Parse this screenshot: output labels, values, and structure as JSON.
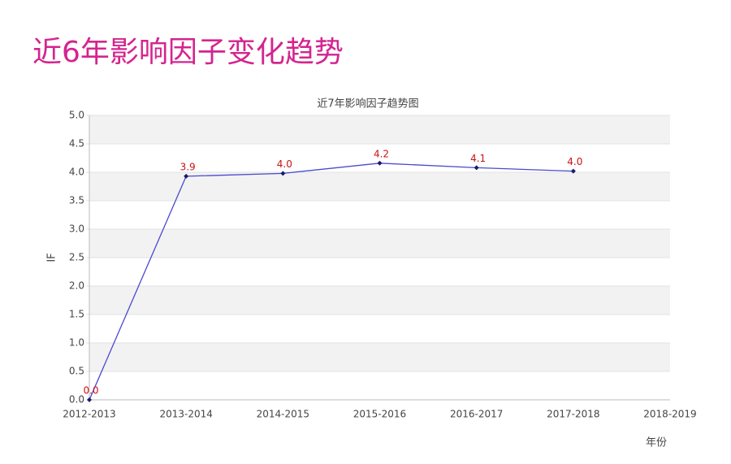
{
  "page_title": "近6年影响因子变化趋势",
  "chart_data": {
    "type": "line",
    "title": "近7年影响因子趋势图",
    "y_label": "IF",
    "x_label": "年份",
    "categories": [
      "2012-2013",
      "2013-2014",
      "2014-2015",
      "2015-2016",
      "2016-2017",
      "2017-2018",
      "2018-2019"
    ],
    "series": [
      {
        "name": "IF",
        "color": "#4a4ad0",
        "values": [
          0,
          3.93,
          3.98,
          4.16,
          4.08,
          4.02,
          null
        ],
        "value_labels": [
          "0.0",
          "3.9",
          "4.0",
          "4.2",
          "4.1",
          "4.0",
          null
        ]
      }
    ],
    "ylim": [
      0,
      5
    ],
    "yticks": [
      {
        "value": 0,
        "label": "0.0"
      },
      0.5,
      {
        "value": 1,
        "label": "1.0"
      },
      1.5,
      {
        "value": 2,
        "label": "2.0"
      },
      2.5,
      {
        "value": 3,
        "label": "3.0"
      },
      3.5,
      {
        "value": 4,
        "label": "4.0"
      },
      4.5,
      {
        "value": 5,
        "label": "5.0"
      }
    ],
    "grid": true
  }
}
